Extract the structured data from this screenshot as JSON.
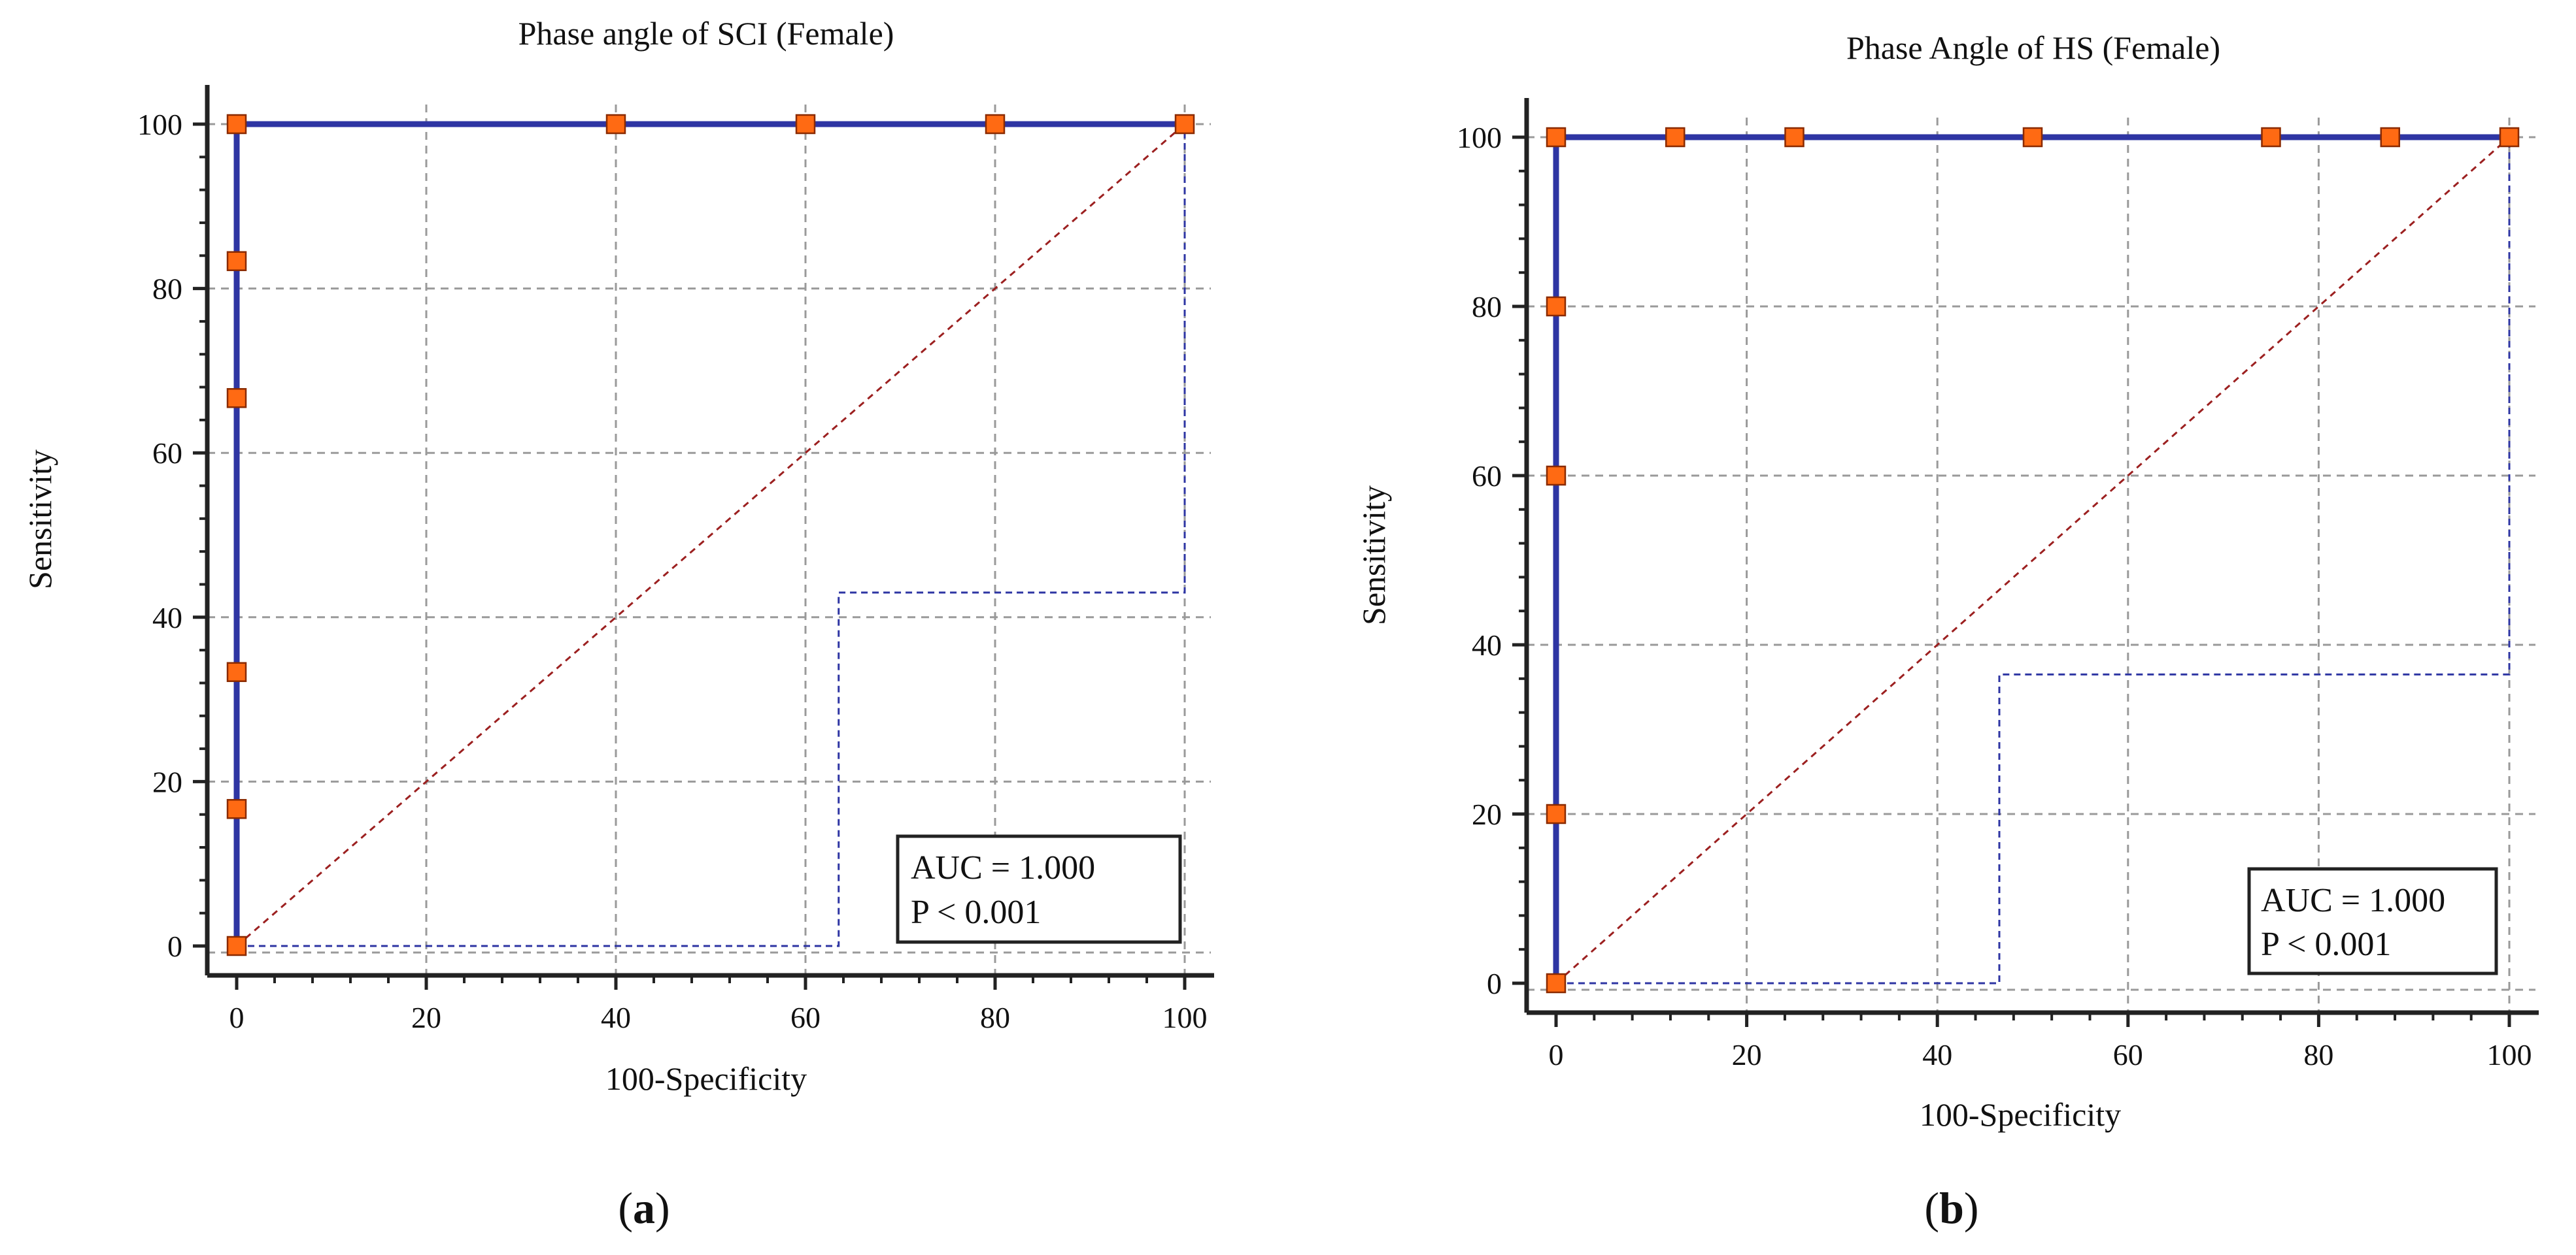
{
  "figure": {
    "panels": [
      {
        "id": "a",
        "caption_letter": "a"
      },
      {
        "id": "b",
        "caption_letter": "b"
      }
    ]
  },
  "colors": {
    "roc_line": "#2e35a3",
    "marker_fill": "#ff6a13",
    "marker_stroke": "#8a2a00",
    "diagonal": "#9c2020",
    "ci_line": "#2e35a3",
    "grid": "#9a9a9a",
    "axis": "#222222",
    "legend_border": "#222222"
  },
  "chart_data": [
    {
      "type": "line",
      "title": "Phase angle of SCI (Female)",
      "xlabel": "100-Specificity",
      "ylabel": "Sensitivity",
      "xlim": [
        0,
        100
      ],
      "ylim": [
        0,
        100
      ],
      "xticks": [
        0,
        20,
        40,
        60,
        80,
        100
      ],
      "yticks": [
        0,
        20,
        40,
        60,
        80,
        100
      ],
      "grid": true,
      "legend_position": "bottom-right",
      "annotation": {
        "auc": "AUC = 1.000",
        "p": "P < 0.001"
      },
      "series": [
        {
          "name": "ROC curve",
          "x": [
            0,
            0,
            0,
            0,
            0,
            0,
            0,
            40,
            60,
            80,
            100
          ],
          "y": [
            0,
            16.67,
            33.33,
            66.67,
            83.33,
            100,
            100,
            100,
            100,
            100,
            100
          ]
        },
        {
          "name": "Reference line",
          "x": [
            0,
            100
          ],
          "y": [
            0,
            100
          ]
        },
        {
          "name": "Lower confidence bound",
          "x": [
            0,
            63.5,
            63.5,
            100,
            100
          ],
          "y": [
            0,
            0,
            43,
            43,
            100
          ]
        }
      ]
    },
    {
      "type": "line",
      "title": "Phase Angle of HS (Female)",
      "xlabel": "100-Specificity",
      "ylabel": "Sensitivity",
      "xlim": [
        0,
        100
      ],
      "ylim": [
        0,
        100
      ],
      "xticks": [
        0,
        20,
        40,
        60,
        80,
        100
      ],
      "yticks": [
        0,
        20,
        40,
        60,
        80,
        100
      ],
      "grid": true,
      "legend_position": "bottom-right",
      "annotation": {
        "auc": "AUC = 1.000",
        "p": "P < 0.001"
      },
      "series": [
        {
          "name": "ROC curve",
          "x": [
            0,
            0,
            0,
            0,
            0,
            0,
            12.5,
            25,
            50,
            75,
            87.5,
            100
          ],
          "y": [
            0,
            20,
            60,
            80,
            100,
            100,
            100,
            100,
            100,
            100,
            100,
            100
          ]
        },
        {
          "name": "Reference line",
          "x": [
            0,
            100
          ],
          "y": [
            0,
            100
          ]
        },
        {
          "name": "Lower confidence bound",
          "x": [
            0,
            46.5,
            46.5,
            100,
            100
          ],
          "y": [
            0,
            0,
            36.5,
            36.5,
            100
          ]
        }
      ]
    }
  ]
}
